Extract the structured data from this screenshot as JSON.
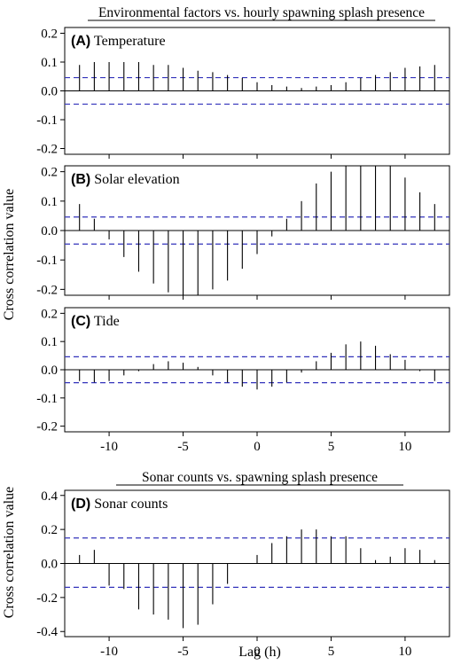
{
  "header_top": "Environmental factors vs. hourly spawning splash presence",
  "header_bottom": "Sonar counts vs. spawning splash presence",
  "ylabel_top": "Cross correlation value",
  "ylabel_bottom": "Cross correlation value",
  "xlabel": "Lag (h)",
  "colors": {
    "ci": "#3333bb",
    "axis": "#000000",
    "bars": "#000000"
  },
  "chart_data": [
    {
      "type": "bar",
      "panel": "A",
      "label_letter": "(A)",
      "label_text": "Temperature",
      "x": [
        -12,
        -11,
        -10,
        -9,
        -8,
        -7,
        -6,
        -5,
        -4,
        -3,
        -2,
        -1,
        0,
        1,
        2,
        3,
        4,
        5,
        6,
        7,
        8,
        9,
        10,
        11,
        12
      ],
      "values": [
        0.09,
        0.1,
        0.1,
        0.1,
        0.1,
        0.09,
        0.09,
        0.08,
        0.07,
        0.065,
        0.055,
        0.045,
        0.03,
        0.02,
        0.015,
        0.01,
        0.015,
        0.02,
        0.03,
        0.045,
        0.055,
        0.065,
        0.08,
        0.085,
        0.09
      ],
      "ci": [
        0.046,
        -0.046
      ],
      "ylim": [
        -0.22,
        0.22
      ],
      "yticks": [
        0.2,
        0.1,
        0.0,
        -0.1,
        -0.2
      ],
      "ytick_labels": [
        "0.2",
        "0.1",
        "0.0",
        "-0.1",
        "-0.2"
      ],
      "xlim": [
        -13,
        13
      ],
      "xticks": [
        -10,
        -5,
        0,
        5,
        10
      ],
      "xtick_labels": [],
      "grid": false
    },
    {
      "type": "bar",
      "panel": "B",
      "label_letter": "(B)",
      "label_text": "Solar elevation",
      "x": [
        -12,
        -11,
        -10,
        -9,
        -8,
        -7,
        -6,
        -5,
        -4,
        -3,
        -2,
        -1,
        0,
        1,
        2,
        3,
        4,
        5,
        6,
        7,
        8,
        9,
        10,
        11,
        12
      ],
      "values": [
        0.09,
        0.04,
        -0.03,
        -0.09,
        -0.14,
        -0.18,
        -0.21,
        -0.22,
        -0.22,
        -0.2,
        -0.17,
        -0.13,
        -0.08,
        -0.02,
        0.04,
        0.1,
        0.16,
        0.2,
        0.22,
        0.22,
        0.22,
        0.22,
        0.18,
        0.13,
        0.09
      ],
      "ci": [
        0.046,
        -0.046
      ],
      "ylim": [
        -0.22,
        0.22
      ],
      "yticks": [
        0.2,
        0.1,
        0.0,
        -0.1,
        -0.2
      ],
      "ytick_labels": [
        "0.2",
        "0.1",
        "0.0",
        "-0.1",
        "-0.2"
      ],
      "xlim": [
        -13,
        13
      ],
      "xticks": [
        -10,
        -5,
        0,
        5,
        10
      ],
      "xtick_labels": [],
      "grid": false
    },
    {
      "type": "bar",
      "panel": "C",
      "label_letter": "(C)",
      "label_text": "Tide",
      "x": [
        -12,
        -11,
        -10,
        -9,
        -8,
        -7,
        -6,
        -5,
        -4,
        -3,
        -2,
        -1,
        0,
        1,
        2,
        3,
        4,
        5,
        6,
        7,
        8,
        9,
        10,
        11,
        12
      ],
      "values": [
        -0.04,
        -0.045,
        -0.04,
        -0.02,
        -0.005,
        0.02,
        0.03,
        0.025,
        0.01,
        -0.02,
        -0.045,
        -0.06,
        -0.07,
        -0.06,
        -0.045,
        -0.01,
        0.03,
        0.06,
        0.09,
        0.1,
        0.085,
        0.055,
        0.035,
        -0.005,
        -0.04
      ],
      "ci": [
        0.046,
        -0.046
      ],
      "ylim": [
        -0.22,
        0.22
      ],
      "yticks": [
        0.2,
        0.1,
        0.0,
        -0.1,
        -0.2
      ],
      "ytick_labels": [
        "0.2",
        "0.1",
        "0.0",
        "-0.1",
        "-0.2"
      ],
      "xlim": [
        -13,
        13
      ],
      "xticks": [
        -10,
        -5,
        0,
        5,
        10
      ],
      "xtick_labels": [
        "-10",
        "-5",
        "0",
        "5",
        "10"
      ],
      "grid": false
    },
    {
      "type": "bar",
      "panel": "D",
      "label_letter": "(D)",
      "label_text": "Sonar counts",
      "x": [
        -12,
        -11,
        -10,
        -9,
        -8,
        -7,
        -6,
        -5,
        -4,
        -3,
        -2,
        -1,
        0,
        1,
        2,
        3,
        4,
        5,
        6,
        7,
        8,
        9,
        10,
        11,
        12
      ],
      "values": [
        0.05,
        0.08,
        -0.13,
        -0.15,
        -0.27,
        -0.3,
        -0.33,
        -0.38,
        -0.36,
        -0.24,
        -0.12,
        0.0,
        0.05,
        0.12,
        0.16,
        0.2,
        0.2,
        0.16,
        0.16,
        0.09,
        0.02,
        0.04,
        0.09,
        0.08,
        0.02
      ],
      "ci": [
        0.15,
        -0.14
      ],
      "ylim": [
        -0.43,
        0.43
      ],
      "yticks": [
        0.4,
        0.2,
        0.0,
        -0.2,
        -0.4
      ],
      "ytick_labels": [
        "0.4",
        "0.2",
        "0.0",
        "-0.2",
        "-0.4"
      ],
      "xlim": [
        -13,
        13
      ],
      "xticks": [
        -10,
        -5,
        0,
        5,
        10
      ],
      "xtick_labels": [
        "-10",
        "-5",
        "0",
        "5",
        "10"
      ],
      "grid": false
    }
  ]
}
